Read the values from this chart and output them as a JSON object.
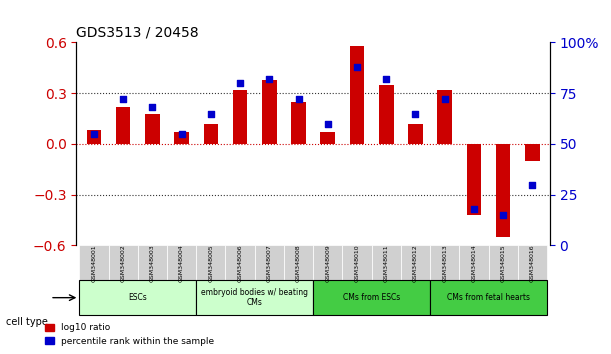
{
  "title": "GDS3513 / 20458",
  "samples": [
    "GSM348001",
    "GSM348002",
    "GSM348003",
    "GSM348004",
    "GSM348005",
    "GSM348006",
    "GSM348007",
    "GSM348008",
    "GSM348009",
    "GSM348010",
    "GSM348011",
    "GSM348012",
    "GSM348013",
    "GSM348014",
    "GSM348015",
    "GSM348016"
  ],
  "log10_ratio": [
    0.08,
    0.22,
    0.18,
    0.07,
    0.12,
    0.32,
    0.38,
    0.25,
    0.07,
    0.58,
    0.35,
    0.12,
    0.32,
    -0.42,
    -0.55,
    -0.1
  ],
  "percentile_rank": [
    55,
    72,
    68,
    55,
    65,
    80,
    82,
    72,
    60,
    88,
    82,
    65,
    72,
    18,
    15,
    30
  ],
  "cell_types": [
    {
      "label": "ESCs",
      "start": 0,
      "end": 4,
      "color": "#ccffcc"
    },
    {
      "label": "embryoid bodies w/ beating\nCMs",
      "start": 4,
      "end": 8,
      "color": "#ccffcc"
    },
    {
      "label": "CMs from ESCs",
      "start": 8,
      "end": 12,
      "color": "#44cc44"
    },
    {
      "label": "CMs from fetal hearts",
      "start": 12,
      "end": 16,
      "color": "#44cc44"
    }
  ],
  "bar_color": "#cc0000",
  "dot_color": "#0000cc",
  "ylim_left": [
    -0.6,
    0.6
  ],
  "ylim_right": [
    0,
    100
  ],
  "yticks_left": [
    -0.6,
    -0.3,
    0,
    0.3,
    0.6
  ],
  "yticks_right": [
    0,
    25,
    50,
    75,
    100
  ],
  "hline_color": "#cc0000",
  "dotted_color": "#333333",
  "background_color": "#ffffff"
}
